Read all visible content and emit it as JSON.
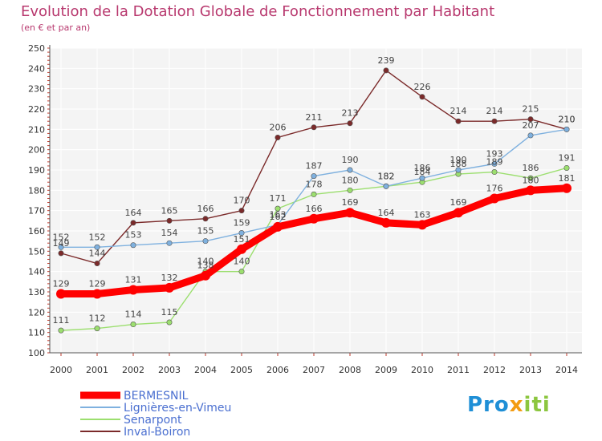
{
  "chart_data": {
    "type": "line",
    "title": "Evolution de la Dotation Globale de Fonctionnement par Habitant",
    "subtitle": "(en € et par an)",
    "xlabel": "",
    "ylabel": "",
    "x": [
      "2000",
      "2001",
      "2002",
      "2003",
      "2004",
      "2005",
      "2006",
      "2007",
      "2008",
      "2009",
      "2010",
      "2011",
      "2012",
      "2013",
      "2014"
    ],
    "ylim": [
      100,
      250
    ],
    "yticks": [
      100,
      110,
      120,
      130,
      140,
      150,
      160,
      170,
      180,
      190,
      200,
      210,
      220,
      230,
      240,
      250
    ],
    "grid": true,
    "legend_position": "bottom-left",
    "series": [
      {
        "name": "BERMESNIL",
        "color": "#ff0000",
        "values": [
          129,
          129,
          131,
          132,
          138,
          151,
          162,
          166,
          169,
          164,
          163,
          169,
          176,
          180,
          181
        ]
      },
      {
        "name": "Lignières-en-Vimeu",
        "color": "#7fb1df",
        "values": [
          152,
          152,
          153,
          154,
          155,
          159,
          163,
          187,
          190,
          182,
          186,
          190,
          193,
          207,
          210
        ]
      },
      {
        "name": "Senarpont",
        "color": "#9cdf6f",
        "values": [
          111,
          112,
          114,
          115,
          140,
          140,
          171,
          178,
          180,
          182,
          184,
          188,
          189,
          186,
          191
        ]
      },
      {
        "name": "Inval-Boiron",
        "color": "#7b2a2a",
        "values": [
          149,
          144,
          164,
          165,
          166,
          170,
          206,
          211,
          213,
          239,
          226,
          214,
          214,
          215,
          210
        ]
      }
    ]
  },
  "logo": {
    "p1": "Pro",
    "p2": "x",
    "p3": "iti"
  }
}
